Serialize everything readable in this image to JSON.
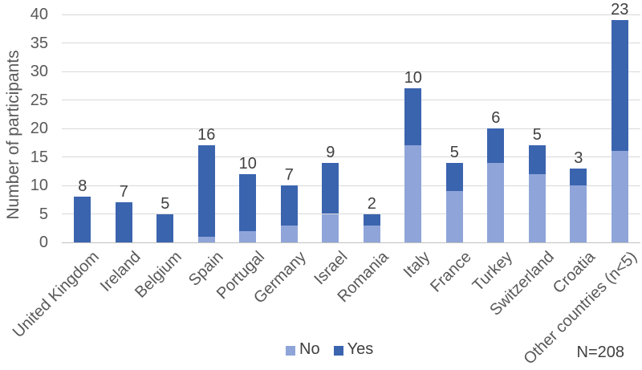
{
  "chart_data": {
    "type": "bar",
    "stacked": true,
    "title": "",
    "xlabel": "",
    "ylabel": "Number of participants",
    "ylim": [
      0,
      40
    ],
    "yticks": [
      0,
      5,
      10,
      15,
      20,
      25,
      30,
      35,
      40
    ],
    "grid": "horizontal",
    "legend_position": "bottom-center",
    "categories": [
      "United Kingdom",
      "Ireland",
      "Belgium",
      "Spain",
      "Portugal",
      "Germany",
      "Israel",
      "Romania",
      "Italy",
      "France",
      "Turkey",
      "Switzerland",
      "Croatia",
      "Other countries (n<5)"
    ],
    "series": [
      {
        "name": "No",
        "color": "#8FA5D9",
        "values": [
          0,
          0,
          0,
          1,
          2,
          3,
          5,
          3,
          17,
          9,
          14,
          12,
          10,
          16
        ]
      },
      {
        "name": "Yes",
        "color": "#3B64AF",
        "values": [
          8,
          7,
          5,
          16,
          10,
          7,
          9,
          2,
          10,
          5,
          6,
          5,
          3,
          23
        ]
      }
    ],
    "bar_labels": [
      8,
      7,
      5,
      16,
      10,
      7,
      9,
      2,
      10,
      5,
      6,
      5,
      3,
      23
    ],
    "annotation": "N=208",
    "colors": {
      "gridline": "#D9D9D9",
      "axis_line": "#C0C0C0",
      "axis_text": "#595959",
      "label_text": "#404040"
    }
  }
}
